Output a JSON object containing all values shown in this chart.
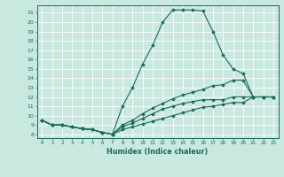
{
  "xlabel": "Humidex (Indice chaleur)",
  "bg_color": "#c8e8e0",
  "line_color": "#1a6b5a",
  "grid_color": "#ffffff",
  "xlim": [
    -0.5,
    23.5
  ],
  "ylim": [
    7.6,
    21.8
  ],
  "xticks": [
    0,
    1,
    2,
    3,
    4,
    5,
    6,
    7,
    8,
    9,
    10,
    11,
    12,
    13,
    14,
    15,
    16,
    17,
    18,
    19,
    20,
    21,
    22,
    23
  ],
  "yticks": [
    8,
    9,
    10,
    11,
    12,
    13,
    14,
    15,
    16,
    17,
    18,
    19,
    20,
    21
  ],
  "lines": [
    {
      "x": [
        0,
        1,
        2,
        3,
        4,
        5,
        6,
        7,
        8,
        9,
        10,
        11,
        12,
        13,
        14,
        15,
        16,
        17,
        18,
        19,
        20,
        21,
        22,
        23
      ],
      "y": [
        9.5,
        9.0,
        9.0,
        8.8,
        8.6,
        8.5,
        8.2,
        8.0,
        11.0,
        13.0,
        15.5,
        17.5,
        20.0,
        21.3,
        21.3,
        21.3,
        21.2,
        19.0,
        16.5,
        15.0,
        14.5,
        12.0,
        12.0,
        12.0
      ]
    },
    {
      "x": [
        0,
        1,
        2,
        3,
        4,
        5,
        6,
        7,
        8,
        9,
        10,
        11,
        12,
        13,
        14,
        15,
        16,
        17,
        18,
        19,
        20,
        21,
        22,
        23
      ],
      "y": [
        9.5,
        9.0,
        9.0,
        8.8,
        8.6,
        8.5,
        8.2,
        8.0,
        9.0,
        9.5,
        10.2,
        10.8,
        11.3,
        11.8,
        12.2,
        12.5,
        12.8,
        13.2,
        13.3,
        13.8,
        13.8,
        12.0,
        12.0,
        12.0
      ]
    },
    {
      "x": [
        0,
        1,
        2,
        3,
        4,
        5,
        6,
        7,
        8,
        9,
        10,
        11,
        12,
        13,
        14,
        15,
        16,
        17,
        18,
        19,
        20,
        21,
        22,
        23
      ],
      "y": [
        9.5,
        9.0,
        9.0,
        8.8,
        8.6,
        8.5,
        8.2,
        8.0,
        8.8,
        9.2,
        9.7,
        10.2,
        10.7,
        11.0,
        11.3,
        11.5,
        11.7,
        11.7,
        11.7,
        12.0,
        12.0,
        12.0,
        12.0,
        12.0
      ]
    },
    {
      "x": [
        0,
        1,
        2,
        3,
        4,
        5,
        6,
        7,
        8,
        9,
        10,
        11,
        12,
        13,
        14,
        15,
        16,
        17,
        18,
        19,
        20,
        21,
        22,
        23
      ],
      "y": [
        9.5,
        9.0,
        9.0,
        8.8,
        8.6,
        8.5,
        8.2,
        8.0,
        8.5,
        8.8,
        9.1,
        9.4,
        9.7,
        10.0,
        10.3,
        10.6,
        10.9,
        11.0,
        11.2,
        11.4,
        11.4,
        12.0,
        12.0,
        12.0
      ]
    }
  ]
}
